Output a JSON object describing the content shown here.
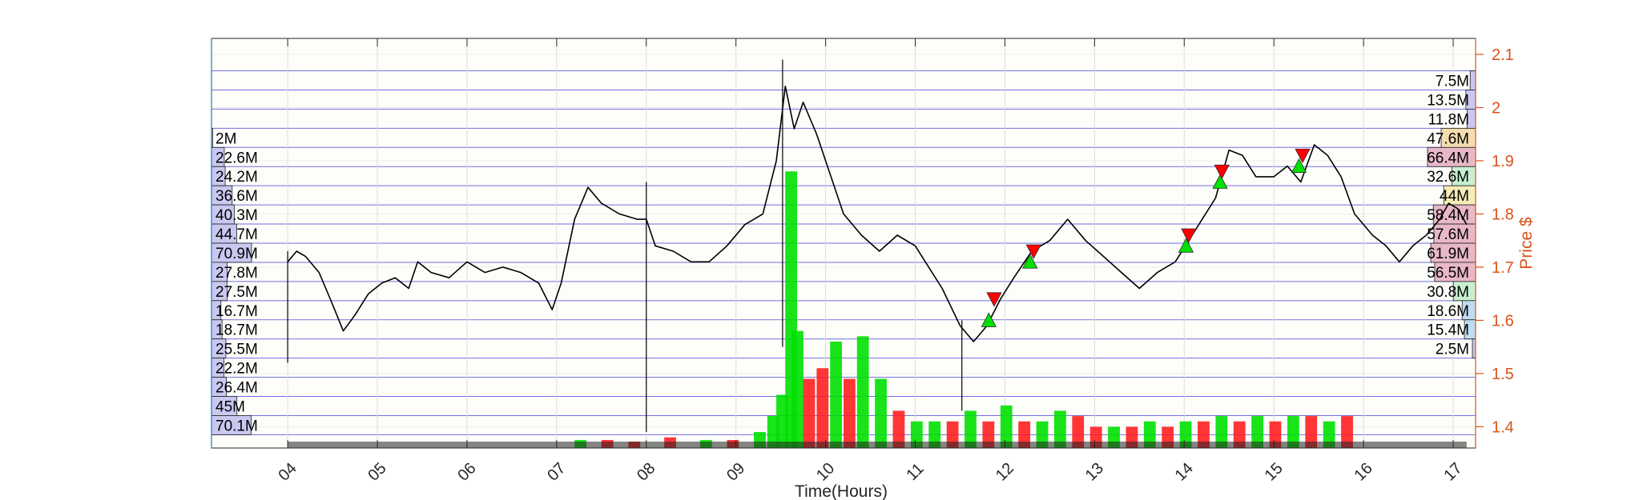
{
  "chart_data": {
    "type": "line",
    "xlabel": "Time(Hours)",
    "ylabel_right": "Price $",
    "x_ticks": [
      "04",
      "05",
      "06",
      "07",
      "08",
      "09",
      "10",
      "11",
      "12",
      "13",
      "14",
      "15",
      "16",
      "17"
    ],
    "x_range": [
      3.15,
      17.25
    ],
    "y_ticks": [
      "1.4",
      "1.5",
      "1.6",
      "1.7",
      "1.8",
      "1.9",
      "2",
      "2.1"
    ],
    "y_range": [
      1.36,
      2.13
    ],
    "grid": true,
    "price_series": {
      "name": "",
      "color": "#000000",
      "points": [
        [
          4.0,
          1.71
        ],
        [
          4.1,
          1.73
        ],
        [
          4.2,
          1.72
        ],
        [
          4.35,
          1.69
        ],
        [
          4.5,
          1.63
        ],
        [
          4.62,
          1.58
        ],
        [
          4.75,
          1.61
        ],
        [
          4.9,
          1.65
        ],
        [
          5.05,
          1.67
        ],
        [
          5.2,
          1.68
        ],
        [
          5.35,
          1.66
        ],
        [
          5.45,
          1.71
        ],
        [
          5.6,
          1.69
        ],
        [
          5.8,
          1.68
        ],
        [
          6.0,
          1.71
        ],
        [
          6.2,
          1.69
        ],
        [
          6.4,
          1.7
        ],
        [
          6.6,
          1.69
        ],
        [
          6.8,
          1.67
        ],
        [
          6.95,
          1.62
        ],
        [
          7.05,
          1.67
        ],
        [
          7.2,
          1.79
        ],
        [
          7.35,
          1.85
        ],
        [
          7.5,
          1.82
        ],
        [
          7.7,
          1.8
        ],
        [
          7.9,
          1.79
        ],
        [
          8.0,
          1.79
        ],
        [
          8.1,
          1.74
        ],
        [
          8.3,
          1.73
        ],
        [
          8.5,
          1.71
        ],
        [
          8.7,
          1.71
        ],
        [
          8.9,
          1.74
        ],
        [
          9.1,
          1.78
        ],
        [
          9.3,
          1.8
        ],
        [
          9.45,
          1.9
        ],
        [
          9.55,
          2.04
        ],
        [
          9.65,
          1.96
        ],
        [
          9.75,
          2.01
        ],
        [
          9.9,
          1.95
        ],
        [
          10.0,
          1.9
        ],
        [
          10.2,
          1.8
        ],
        [
          10.4,
          1.76
        ],
        [
          10.6,
          1.73
        ],
        [
          10.8,
          1.76
        ],
        [
          11.0,
          1.74
        ],
        [
          11.15,
          1.7
        ],
        [
          11.3,
          1.66
        ],
        [
          11.5,
          1.59
        ],
        [
          11.65,
          1.56
        ],
        [
          11.8,
          1.59
        ],
        [
          11.95,
          1.64
        ],
        [
          12.1,
          1.68
        ],
        [
          12.3,
          1.73
        ],
        [
          12.5,
          1.75
        ],
        [
          12.7,
          1.79
        ],
        [
          12.9,
          1.75
        ],
        [
          13.1,
          1.72
        ],
        [
          13.3,
          1.69
        ],
        [
          13.5,
          1.66
        ],
        [
          13.7,
          1.69
        ],
        [
          13.9,
          1.71
        ],
        [
          14.05,
          1.75
        ],
        [
          14.2,
          1.79
        ],
        [
          14.35,
          1.83
        ],
        [
          14.5,
          1.92
        ],
        [
          14.65,
          1.91
        ],
        [
          14.8,
          1.87
        ],
        [
          15.0,
          1.87
        ],
        [
          15.15,
          1.89
        ],
        [
          15.3,
          1.86
        ],
        [
          15.45,
          1.93
        ],
        [
          15.6,
          1.91
        ],
        [
          15.75,
          1.87
        ],
        [
          15.9,
          1.8
        ],
        [
          16.1,
          1.76
        ],
        [
          16.25,
          1.74
        ],
        [
          16.4,
          1.71
        ],
        [
          16.55,
          1.74
        ],
        [
          16.7,
          1.76
        ],
        [
          16.85,
          1.79
        ],
        [
          16.95,
          1.82
        ],
        [
          17.05,
          1.81
        ],
        [
          17.15,
          1.78
        ]
      ]
    },
    "buy_markers": [
      {
        "x": 11.82,
        "y": 1.6
      },
      {
        "x": 12.28,
        "y": 1.71
      },
      {
        "x": 14.02,
        "y": 1.74
      },
      {
        "x": 14.4,
        "y": 1.86
      },
      {
        "x": 15.28,
        "y": 1.89
      }
    ],
    "sell_markers": [
      {
        "x": 11.88,
        "y": 1.64
      },
      {
        "x": 12.32,
        "y": 1.73
      },
      {
        "x": 14.05,
        "y": 1.76
      },
      {
        "x": 14.42,
        "y": 1.88
      },
      {
        "x": 15.32,
        "y": 1.91
      }
    ],
    "volume_series": {
      "name": "",
      "up_color": "#00e000",
      "down_color": "#ff2020",
      "values_as_price_top": [
        [
          9.2,
          1.39,
          "up"
        ],
        [
          9.35,
          1.42,
          "up"
        ],
        [
          9.45,
          1.46,
          "up"
        ],
        [
          9.55,
          1.88,
          "up"
        ],
        [
          9.62,
          1.58,
          "up"
        ],
        [
          9.75,
          1.49,
          "down"
        ],
        [
          9.9,
          1.51,
          "down"
        ],
        [
          10.05,
          1.56,
          "up"
        ],
        [
          10.2,
          1.49,
          "down"
        ],
        [
          10.35,
          1.57,
          "up"
        ],
        [
          10.55,
          1.49,
          "up"
        ],
        [
          10.75,
          1.43,
          "down"
        ],
        [
          10.95,
          1.41,
          "up"
        ],
        [
          11.15,
          1.41,
          "up"
        ],
        [
          11.35,
          1.41,
          "down"
        ],
        [
          11.55,
          1.43,
          "up"
        ],
        [
          11.75,
          1.41,
          "down"
        ],
        [
          11.95,
          1.44,
          "up"
        ],
        [
          12.15,
          1.41,
          "down"
        ],
        [
          12.35,
          1.41,
          "up"
        ],
        [
          12.55,
          1.43,
          "up"
        ],
        [
          12.75,
          1.42,
          "down"
        ],
        [
          12.95,
          1.4,
          "down"
        ],
        [
          13.15,
          1.4,
          "up"
        ],
        [
          13.35,
          1.4,
          "down"
        ],
        [
          13.55,
          1.41,
          "up"
        ],
        [
          13.75,
          1.4,
          "down"
        ],
        [
          13.95,
          1.41,
          "up"
        ],
        [
          14.15,
          1.41,
          "down"
        ],
        [
          14.35,
          1.42,
          "up"
        ],
        [
          14.55,
          1.41,
          "down"
        ],
        [
          14.75,
          1.42,
          "up"
        ],
        [
          14.95,
          1.41,
          "down"
        ],
        [
          15.15,
          1.42,
          "up"
        ],
        [
          15.35,
          1.42,
          "down"
        ],
        [
          15.55,
          1.41,
          "up"
        ],
        [
          15.75,
          1.42,
          "down"
        ],
        [
          7.2,
          1.375,
          "up"
        ],
        [
          7.5,
          1.375,
          "down"
        ],
        [
          7.8,
          1.372,
          "down"
        ],
        [
          8.2,
          1.38,
          "down"
        ],
        [
          8.6,
          1.375,
          "up"
        ],
        [
          8.9,
          1.375,
          "down"
        ]
      ]
    },
    "volume_profile_left": {
      "labels": [
        "2M",
        "22.6M",
        "24.2M",
        "36.6M",
        "40.3M",
        "44.7M",
        "70.9M",
        "27.8M",
        "27.5M",
        "16.7M",
        "18.7M",
        "25.5M",
        "22.2M",
        "26.4M",
        "45M",
        "70.1M"
      ],
      "price_levels": [
        1.943,
        1.907,
        1.871,
        1.835,
        1.799,
        1.763,
        1.727,
        1.691,
        1.655,
        1.619,
        1.583,
        1.547,
        1.511,
        1.475,
        1.439,
        1.403
      ],
      "volumes_m": [
        2,
        22.6,
        24.2,
        36.6,
        40.3,
        44.7,
        70.9,
        27.8,
        27.5,
        16.7,
        18.7,
        25.5,
        22.2,
        26.4,
        45,
        70.1
      ],
      "color": "#c8c8f0"
    },
    "volume_profile_right": {
      "labels": [
        "7.5M",
        "13.5M",
        "11.8M",
        "47.6M",
        "66.4M",
        "32.6M",
        "44M",
        "58.4M",
        "57.6M",
        "61.9M",
        "56.5M",
        "30.8M",
        "18.6M",
        "15.4M",
        "2.5M"
      ],
      "price_levels": [
        2.051,
        2.015,
        1.979,
        1.943,
        1.907,
        1.871,
        1.835,
        1.799,
        1.763,
        1.727,
        1.691,
        1.655,
        1.619,
        1.583,
        1.547
      ],
      "volumes_m": [
        7.5,
        13.5,
        11.8,
        47.6,
        66.4,
        32.6,
        44,
        58.4,
        57.6,
        61.9,
        56.5,
        30.8,
        18.6,
        15.4,
        2.5
      ],
      "colors": [
        "#c8c8f0",
        "#c8c8f0",
        "#c8c8f0",
        "#f5dcb0",
        "#e8b8c8",
        "#c8f0d0",
        "#f5ecb8",
        "#e8b8c8",
        "#e8b8c8",
        "#e8b8c8",
        "#e8b8c8",
        "#c8f0d0",
        "#c0dcf0",
        "#c0dcf0",
        "#c8c8f0"
      ]
    }
  }
}
